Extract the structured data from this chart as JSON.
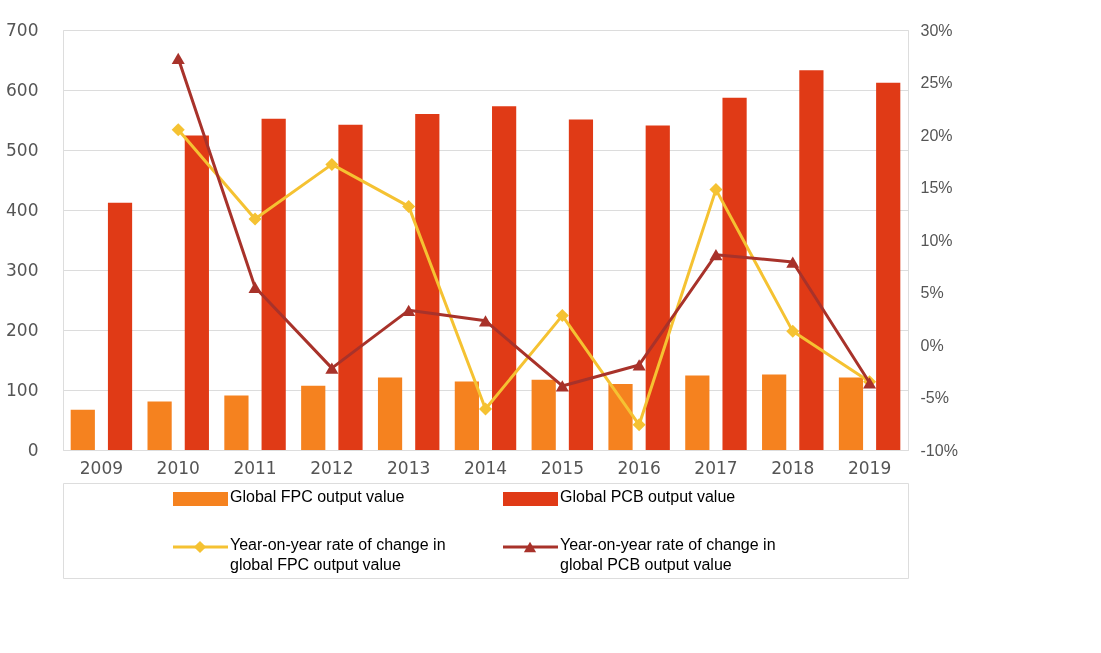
{
  "chart_data": {
    "type": "bar",
    "categories": [
      "2009",
      "2010",
      "2011",
      "2012",
      "2013",
      "2014",
      "2015",
      "2016",
      "2017",
      "2018",
      "2019"
    ],
    "series": [
      {
        "name": "Global FPC output value",
        "color": "#f5821f",
        "values": [
          67,
          81,
          91,
          107,
          121,
          114,
          117,
          110,
          124,
          126,
          121
        ]
      },
      {
        "name": "Global PCB output value",
        "color": "#e03a16",
        "values": [
          412,
          524,
          552,
          542,
          560,
          573,
          551,
          541,
          587,
          633,
          612
        ]
      },
      {
        "name": "Year-on-year rate of change in global FPC output value",
        "type": "line",
        "axis": "y2",
        "marker": "diamond",
        "color": "#f5c232",
        "values": [
          null,
          20.5,
          12.0,
          17.2,
          13.2,
          -6.1,
          2.8,
          -7.6,
          14.8,
          1.3,
          -3.5
        ]
      },
      {
        "name": "Year-on-year rate of change in global PCB output value",
        "type": "line",
        "axis": "y2",
        "marker": "triangle",
        "color": "#a8322a",
        "values": [
          null,
          27.3,
          5.5,
          -2.2,
          3.3,
          2.3,
          -3.9,
          -1.9,
          8.6,
          7.9,
          -3.6
        ]
      }
    ],
    "ylim": [
      0,
      700
    ],
    "yticks": [
      0,
      100,
      200,
      300,
      400,
      500,
      600,
      700
    ],
    "y2lim": [
      -10,
      30
    ],
    "y2ticks": [
      {
        "value": -10,
        "label": "-10%"
      },
      {
        "value": -5,
        "label": "-5%"
      },
      {
        "value": 0,
        "label": "0%"
      },
      {
        "value": 5,
        "label": "5%"
      },
      {
        "value": 10,
        "label": "10%"
      },
      {
        "value": 15,
        "label": "15%"
      },
      {
        "value": 20,
        "label": "20%"
      },
      {
        "value": 25,
        "label": "25%"
      },
      {
        "value": 30,
        "label": "30%"
      }
    ],
    "grid": "y",
    "legend": "bottom"
  }
}
